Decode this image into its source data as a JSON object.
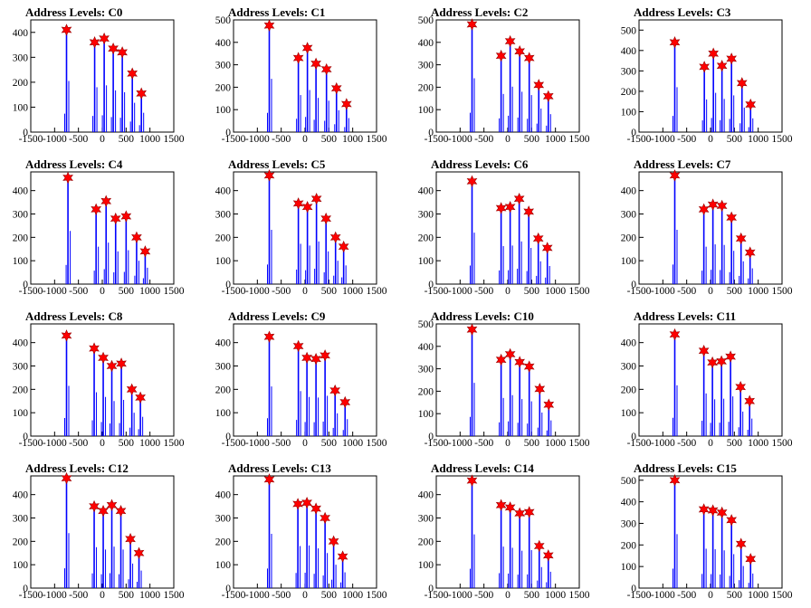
{
  "chart_data": [
    {
      "type": "histogram-peaks",
      "title": "Address Levels: C0",
      "xlim": [
        -1500,
        1500
      ],
      "ylim": [
        0,
        450
      ],
      "yticks": [
        0,
        100,
        200,
        300,
        400
      ],
      "xticks": [
        -1500,
        -1000,
        -500,
        0,
        500,
        1000,
        1500
      ],
      "peaks": [
        {
          "x": -750,
          "y": 410
        },
        {
          "x": -160,
          "y": 360
        },
        {
          "x": 40,
          "y": 375
        },
        {
          "x": 230,
          "y": 335
        },
        {
          "x": 420,
          "y": 320
        },
        {
          "x": 630,
          "y": 235
        },
        {
          "x": 820,
          "y": 155
        }
      ]
    },
    {
      "type": "histogram-peaks",
      "title": "Address Levels: C1",
      "xlim": [
        -1500,
        1500
      ],
      "ylim": [
        0,
        500
      ],
      "yticks": [
        0,
        100,
        200,
        300,
        400,
        500
      ],
      "xticks": [
        -1500,
        -1000,
        -500,
        0,
        500,
        1000,
        1500
      ],
      "peaks": [
        {
          "x": -750,
          "y": 475
        },
        {
          "x": -140,
          "y": 330
        },
        {
          "x": 50,
          "y": 375
        },
        {
          "x": 230,
          "y": 305
        },
        {
          "x": 450,
          "y": 280
        },
        {
          "x": 660,
          "y": 195
        },
        {
          "x": 870,
          "y": 125
        }
      ]
    },
    {
      "type": "histogram-peaks",
      "title": "Address Levels: C2",
      "xlim": [
        -1500,
        1500
      ],
      "ylim": [
        0,
        500
      ],
      "yticks": [
        0,
        100,
        200,
        300,
        400,
        500
      ],
      "xticks": [
        -1500,
        -1000,
        -500,
        0,
        500,
        1000,
        1500
      ],
      "peaks": [
        {
          "x": -750,
          "y": 480
        },
        {
          "x": -140,
          "y": 340
        },
        {
          "x": 50,
          "y": 405
        },
        {
          "x": 250,
          "y": 360
        },
        {
          "x": 450,
          "y": 330
        },
        {
          "x": 650,
          "y": 210
        },
        {
          "x": 850,
          "y": 160
        }
      ]
    },
    {
      "type": "histogram-peaks",
      "title": "Address Levels: C3",
      "xlim": [
        -1500,
        1500
      ],
      "ylim": [
        0,
        550
      ],
      "yticks": [
        0,
        100,
        200,
        300,
        400,
        500
      ],
      "xticks": [
        -1500,
        -1000,
        -500,
        0,
        500,
        1000,
        1500
      ],
      "peaks": [
        {
          "x": -750,
          "y": 440
        },
        {
          "x": -130,
          "y": 320
        },
        {
          "x": 60,
          "y": 385
        },
        {
          "x": 240,
          "y": 325
        },
        {
          "x": 440,
          "y": 360
        },
        {
          "x": 660,
          "y": 240
        },
        {
          "x": 840,
          "y": 135
        }
      ]
    },
    {
      "type": "histogram-peaks",
      "title": "Address Levels: C4",
      "xlim": [
        -1500,
        1500
      ],
      "ylim": [
        0,
        480
      ],
      "yticks": [
        0,
        100,
        200,
        300,
        400
      ],
      "xticks": [
        -1500,
        -1000,
        -500,
        0,
        500,
        1000,
        1500
      ],
      "peaks": [
        {
          "x": -720,
          "y": 455
        },
        {
          "x": -130,
          "y": 320
        },
        {
          "x": 80,
          "y": 355
        },
        {
          "x": 280,
          "y": 280
        },
        {
          "x": 500,
          "y": 290
        },
        {
          "x": 720,
          "y": 200
        },
        {
          "x": 900,
          "y": 140
        }
      ]
    },
    {
      "type": "histogram-peaks",
      "title": "Address Levels: C5",
      "xlim": [
        -1500,
        1500
      ],
      "ylim": [
        0,
        480
      ],
      "yticks": [
        0,
        100,
        200,
        300,
        400
      ],
      "xticks": [
        -1500,
        -1000,
        -500,
        0,
        500,
        1000,
        1500
      ],
      "peaks": [
        {
          "x": -750,
          "y": 465
        },
        {
          "x": -140,
          "y": 345
        },
        {
          "x": 50,
          "y": 330
        },
        {
          "x": 240,
          "y": 365
        },
        {
          "x": 440,
          "y": 280
        },
        {
          "x": 640,
          "y": 200
        },
        {
          "x": 810,
          "y": 160
        }
      ]
    },
    {
      "type": "histogram-peaks",
      "title": "Address Levels: C6",
      "xlim": [
        -1500,
        1500
      ],
      "ylim": [
        0,
        480
      ],
      "yticks": [
        0,
        100,
        200,
        300,
        400
      ],
      "xticks": [
        -1500,
        -1000,
        -500,
        0,
        500,
        1000,
        1500
      ],
      "peaks": [
        {
          "x": -750,
          "y": 440
        },
        {
          "x": -140,
          "y": 325
        },
        {
          "x": 50,
          "y": 330
        },
        {
          "x": 240,
          "y": 365
        },
        {
          "x": 440,
          "y": 310
        },
        {
          "x": 640,
          "y": 195
        },
        {
          "x": 830,
          "y": 155
        }
      ]
    },
    {
      "type": "histogram-peaks",
      "title": "Address Levels: C7",
      "xlim": [
        -1500,
        1500
      ],
      "ylim": [
        0,
        480
      ],
      "yticks": [
        0,
        100,
        200,
        300,
        400
      ],
      "xticks": [
        -1500,
        -1000,
        -500,
        0,
        500,
        1000,
        1500
      ],
      "peaks": [
        {
          "x": -750,
          "y": 465
        },
        {
          "x": -140,
          "y": 320
        },
        {
          "x": 50,
          "y": 340
        },
        {
          "x": 240,
          "y": 335
        },
        {
          "x": 440,
          "y": 285
        },
        {
          "x": 640,
          "y": 195
        },
        {
          "x": 830,
          "y": 135
        }
      ]
    },
    {
      "type": "histogram-peaks",
      "title": "Address Levels: C8",
      "xlim": [
        -1500,
        1500
      ],
      "ylim": [
        0,
        480
      ],
      "yticks": [
        0,
        100,
        200,
        300,
        400
      ],
      "xticks": [
        -1500,
        -1000,
        -500,
        0,
        500,
        1000,
        1500
      ],
      "peaks": [
        {
          "x": -750,
          "y": 430
        },
        {
          "x": -170,
          "y": 375
        },
        {
          "x": 20,
          "y": 335
        },
        {
          "x": 200,
          "y": 300
        },
        {
          "x": 400,
          "y": 310
        },
        {
          "x": 620,
          "y": 200
        },
        {
          "x": 800,
          "y": 165
        }
      ]
    },
    {
      "type": "histogram-peaks",
      "title": "Address Levels: C9",
      "xlim": [
        -1500,
        1500
      ],
      "ylim": [
        0,
        480
      ],
      "yticks": [
        0,
        100,
        200,
        300,
        400
      ],
      "xticks": [
        -1500,
        -1000,
        -500,
        0,
        500,
        1000,
        1500
      ],
      "peaks": [
        {
          "x": -750,
          "y": 425
        },
        {
          "x": -140,
          "y": 385
        },
        {
          "x": 40,
          "y": 335
        },
        {
          "x": 230,
          "y": 330
        },
        {
          "x": 420,
          "y": 345
        },
        {
          "x": 630,
          "y": 195
        },
        {
          "x": 840,
          "y": 145
        }
      ]
    },
    {
      "type": "histogram-peaks",
      "title": "Address Levels: C10",
      "xlim": [
        -1500,
        1500
      ],
      "ylim": [
        0,
        500
      ],
      "yticks": [
        0,
        100,
        200,
        300,
        400,
        500
      ],
      "xticks": [
        -1500,
        -1000,
        -500,
        0,
        500,
        1000,
        1500
      ],
      "peaks": [
        {
          "x": -750,
          "y": 475
        },
        {
          "x": -140,
          "y": 340
        },
        {
          "x": 50,
          "y": 365
        },
        {
          "x": 250,
          "y": 330
        },
        {
          "x": 450,
          "y": 310
        },
        {
          "x": 670,
          "y": 210
        },
        {
          "x": 860,
          "y": 140
        }
      ]
    },
    {
      "type": "histogram-peaks",
      "title": "Address Levels: C11",
      "xlim": [
        -1500,
        1500
      ],
      "ylim": [
        0,
        480
      ],
      "yticks": [
        0,
        100,
        200,
        300,
        400
      ],
      "xticks": [
        -1500,
        -1000,
        -500,
        0,
        500,
        1000,
        1500
      ],
      "peaks": [
        {
          "x": -750,
          "y": 435
        },
        {
          "x": -140,
          "y": 365
        },
        {
          "x": 40,
          "y": 315
        },
        {
          "x": 230,
          "y": 320
        },
        {
          "x": 420,
          "y": 340
        },
        {
          "x": 630,
          "y": 210
        },
        {
          "x": 820,
          "y": 150
        }
      ]
    },
    {
      "type": "histogram-peaks",
      "title": "Address Levels: C12",
      "xlim": [
        -1500,
        1500
      ],
      "ylim": [
        0,
        480
      ],
      "yticks": [
        0,
        100,
        200,
        300,
        400
      ],
      "xticks": [
        -1500,
        -1000,
        -500,
        0,
        500,
        1000,
        1500
      ],
      "peaks": [
        {
          "x": -750,
          "y": 470
        },
        {
          "x": -170,
          "y": 350
        },
        {
          "x": 20,
          "y": 330
        },
        {
          "x": 200,
          "y": 355
        },
        {
          "x": 390,
          "y": 330
        },
        {
          "x": 590,
          "y": 210
        },
        {
          "x": 770,
          "y": 150
        }
      ]
    },
    {
      "type": "histogram-peaks",
      "title": "Address Levels: C13",
      "xlim": [
        -1500,
        1500
      ],
      "ylim": [
        0,
        480
      ],
      "yticks": [
        0,
        100,
        200,
        300,
        400
      ],
      "xticks": [
        -1500,
        -1000,
        -500,
        0,
        500,
        1000,
        1500
      ],
      "peaks": [
        {
          "x": -750,
          "y": 465
        },
        {
          "x": -150,
          "y": 360
        },
        {
          "x": 40,
          "y": 365
        },
        {
          "x": 230,
          "y": 340
        },
        {
          "x": 420,
          "y": 300
        },
        {
          "x": 600,
          "y": 200
        },
        {
          "x": 790,
          "y": 135
        }
      ]
    },
    {
      "type": "histogram-peaks",
      "title": "Address Levels: C14",
      "xlim": [
        -1500,
        1500
      ],
      "ylim": [
        0,
        480
      ],
      "yticks": [
        0,
        100,
        200,
        300,
        400
      ],
      "xticks": [
        -1500,
        -1000,
        -500,
        0,
        500,
        1000,
        1500
      ],
      "peaks": [
        {
          "x": -750,
          "y": 460
        },
        {
          "x": -140,
          "y": 355
        },
        {
          "x": 50,
          "y": 345
        },
        {
          "x": 250,
          "y": 320
        },
        {
          "x": 450,
          "y": 325
        },
        {
          "x": 660,
          "y": 180
        },
        {
          "x": 850,
          "y": 140
        }
      ]
    },
    {
      "type": "histogram-peaks",
      "title": "Address Levels: C15",
      "xlim": [
        -1500,
        1500
      ],
      "ylim": [
        0,
        520
      ],
      "yticks": [
        0,
        100,
        200,
        300,
        400,
        500
      ],
      "xticks": [
        -1500,
        -1000,
        -500,
        0,
        500,
        1000,
        1500
      ],
      "peaks": [
        {
          "x": -750,
          "y": 500
        },
        {
          "x": -140,
          "y": 365
        },
        {
          "x": 50,
          "y": 360
        },
        {
          "x": 240,
          "y": 350
        },
        {
          "x": 440,
          "y": 315
        },
        {
          "x": 640,
          "y": 205
        },
        {
          "x": 840,
          "y": 135
        }
      ]
    }
  ],
  "colors": {
    "bar": "#0000ff",
    "marker": "#ff0000",
    "marker_stroke": "#990000",
    "axis": "#000000"
  }
}
